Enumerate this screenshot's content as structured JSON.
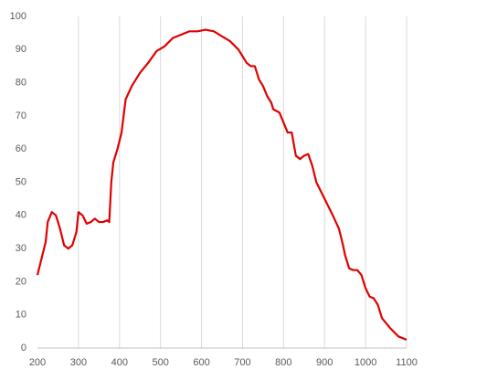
{
  "chart_data": {
    "type": "line",
    "x": [
      200,
      210,
      220,
      225,
      235,
      245,
      255,
      265,
      275,
      285,
      295,
      300,
      310,
      320,
      330,
      340,
      350,
      360,
      370,
      375,
      380,
      385,
      395,
      405,
      415,
      430,
      450,
      470,
      490,
      510,
      530,
      550,
      570,
      590,
      610,
      630,
      650,
      670,
      690,
      710,
      720,
      730,
      740,
      750,
      760,
      770,
      775,
      790,
      800,
      810,
      820,
      830,
      840,
      850,
      860,
      870,
      880,
      900,
      920,
      935,
      945,
      950,
      960,
      970,
      980,
      990,
      1000,
      1010,
      1020,
      1030,
      1040,
      1060,
      1080,
      1100
    ],
    "series": [
      {
        "color": "#e00000",
        "values": [
          22,
          27,
          32,
          38,
          41,
          40,
          36,
          31,
          30,
          31,
          35,
          41,
          40,
          37.5,
          38,
          39,
          38,
          38,
          38.5,
          38,
          50,
          56,
          60,
          65,
          75,
          79,
          83,
          86,
          89.5,
          91,
          93.5,
          94.5,
          95.5,
          95.5,
          96,
          95.5,
          94,
          92.5,
          90,
          86,
          85,
          85,
          81,
          79,
          76,
          74,
          72,
          71,
          68,
          65,
          65,
          58,
          57,
          58,
          58.5,
          55,
          50,
          45,
          40,
          36,
          31,
          28,
          24,
          23.5,
          23.5,
          22,
          18,
          15.5,
          15,
          13,
          9,
          6,
          3.5,
          2.5
        ]
      }
    ],
    "xlim": [
      200,
      1100
    ],
    "xticks": [
      200,
      300,
      400,
      500,
      600,
      700,
      800,
      900,
      1000,
      1100
    ],
    "ylim": [
      0,
      100
    ],
    "yticks": [
      0,
      10,
      20,
      30,
      40,
      50,
      60,
      70,
      80,
      90,
      100
    ],
    "grid": "x"
  }
}
